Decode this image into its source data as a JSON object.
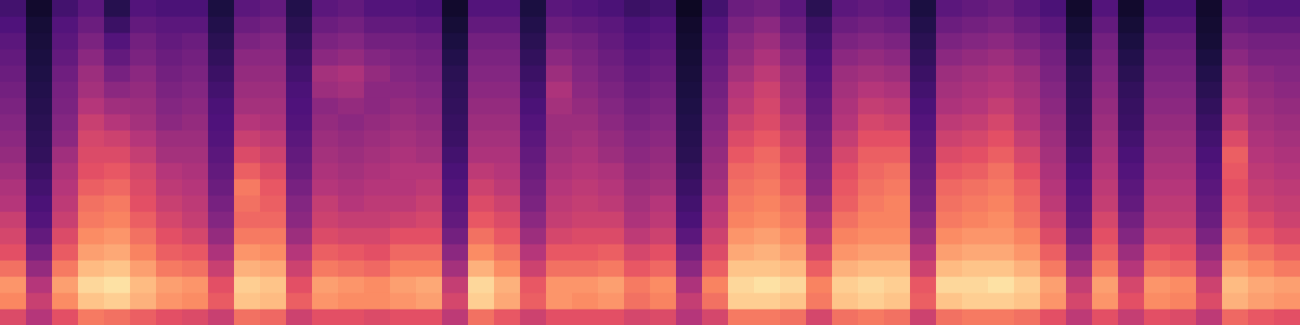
{
  "chart_data": {
    "type": "heatmap",
    "xlim": [
      0,
      50
    ],
    "ylim": [
      0,
      20
    ],
    "zlim": [
      0,
      100
    ],
    "tick_labels": false,
    "cells": [
      [
        60,
        75,
        78,
        70,
        62,
        58,
        55,
        50,
        48,
        45,
        42,
        40,
        38,
        36,
        34,
        32,
        30,
        28,
        25,
        22
      ],
      [
        50,
        55,
        50,
        42,
        35,
        30,
        26,
        24,
        22,
        20,
        18,
        17,
        16,
        15,
        14,
        13,
        12,
        11,
        10,
        8
      ],
      [
        62,
        76,
        80,
        72,
        65,
        60,
        55,
        52,
        50,
        48,
        45,
        40,
        38,
        36,
        35,
        33,
        30,
        28,
        26,
        22
      ],
      [
        72,
        88,
        92,
        86,
        80,
        76,
        72,
        70,
        66,
        62,
        60,
        58,
        55,
        50,
        46,
        44,
        40,
        36,
        32,
        28
      ],
      [
        70,
        90,
        94,
        88,
        82,
        78,
        74,
        72,
        68,
        64,
        60,
        56,
        50,
        45,
        40,
        35,
        30,
        26,
        20,
        15
      ],
      [
        66,
        84,
        86,
        80,
        74,
        70,
        66,
        62,
        60,
        58,
        54,
        50,
        46,
        44,
        42,
        40,
        36,
        34,
        30,
        26
      ],
      [
        62,
        78,
        80,
        72,
        66,
        62,
        58,
        55,
        52,
        50,
        46,
        44,
        40,
        38,
        36,
        34,
        32,
        30,
        28,
        24
      ],
      [
        60,
        76,
        78,
        70,
        64,
        58,
        54,
        52,
        50,
        48,
        46,
        44,
        42,
        40,
        38,
        36,
        34,
        32,
        28,
        24
      ],
      [
        55,
        65,
        62,
        55,
        48,
        42,
        38,
        35,
        32,
        30,
        28,
        26,
        25,
        24,
        22,
        20,
        18,
        16,
        14,
        12
      ],
      [
        70,
        88,
        90,
        84,
        78,
        72,
        68,
        70,
        72,
        66,
        60,
        55,
        50,
        46,
        44,
        42,
        40,
        36,
        32,
        28
      ],
      [
        68,
        86,
        88,
        82,
        76,
        72,
        68,
        66,
        64,
        60,
        56,
        52,
        48,
        46,
        44,
        42,
        40,
        38,
        34,
        30
      ],
      [
        56,
        66,
        62,
        56,
        50,
        44,
        40,
        38,
        35,
        32,
        30,
        28,
        26,
        25,
        24,
        22,
        20,
        18,
        16,
        14
      ],
      [
        62,
        78,
        80,
        72,
        66,
        60,
        56,
        54,
        50,
        48,
        46,
        44,
        42,
        40,
        44,
        46,
        40,
        36,
        32,
        28
      ],
      [
        62,
        76,
        78,
        70,
        64,
        58,
        54,
        50,
        48,
        46,
        44,
        42,
        40,
        42,
        46,
        48,
        42,
        38,
        34,
        30
      ],
      [
        60,
        76,
        76,
        68,
        62,
        58,
        54,
        52,
        50,
        48,
        46,
        44,
        42,
        40,
        40,
        42,
        38,
        34,
        30,
        26
      ],
      [
        62,
        78,
        80,
        74,
        68,
        62,
        56,
        52,
        50,
        50,
        48,
        46,
        44,
        42,
        40,
        38,
        36,
        34,
        30,
        26
      ],
      [
        62,
        80,
        82,
        74,
        68,
        62,
        58,
        55,
        52,
        50,
        46,
        44,
        42,
        40,
        38,
        36,
        34,
        32,
        28,
        24
      ],
      [
        52,
        58,
        54,
        46,
        40,
        34,
        30,
        28,
        26,
        24,
        22,
        20,
        19,
        18,
        17,
        16,
        14,
        12,
        10,
        8
      ],
      [
        70,
        90,
        92,
        84,
        76,
        70,
        64,
        60,
        56,
        52,
        48,
        46,
        44,
        42,
        40,
        38,
        36,
        34,
        30,
        26
      ],
      [
        64,
        82,
        84,
        76,
        70,
        64,
        60,
        56,
        52,
        50,
        48,
        46,
        44,
        42,
        40,
        38,
        36,
        34,
        30,
        26
      ],
      [
        56,
        66,
        64,
        56,
        50,
        44,
        40,
        36,
        34,
        32,
        30,
        28,
        26,
        24,
        22,
        20,
        18,
        16,
        14,
        12
      ],
      [
        62,
        78,
        78,
        70,
        64,
        58,
        54,
        52,
        50,
        48,
        46,
        44,
        44,
        46,
        48,
        44,
        40,
        36,
        32,
        28
      ],
      [
        62,
        76,
        78,
        70,
        64,
        60,
        56,
        54,
        52,
        50,
        48,
        46,
        44,
        42,
        40,
        38,
        36,
        34,
        30,
        26
      ],
      [
        62,
        78,
        80,
        72,
        66,
        60,
        56,
        52,
        50,
        48,
        44,
        42,
        40,
        38,
        36,
        34,
        32,
        30,
        28,
        24
      ],
      [
        58,
        70,
        72,
        64,
        58,
        52,
        48,
        46,
        44,
        42,
        40,
        38,
        36,
        34,
        32,
        30,
        28,
        26,
        24,
        20
      ],
      [
        60,
        74,
        76,
        68,
        62,
        56,
        52,
        50,
        46,
        44,
        42,
        40,
        38,
        36,
        34,
        32,
        30,
        28,
        26,
        22
      ],
      [
        50,
        54,
        48,
        40,
        34,
        28,
        24,
        22,
        20,
        18,
        16,
        15,
        14,
        13,
        12,
        11,
        10,
        9,
        8,
        6
      ],
      [
        58,
        70,
        74,
        66,
        60,
        56,
        52,
        50,
        46,
        44,
        42,
        40,
        38,
        36,
        34,
        32,
        30,
        28,
        26,
        22
      ],
      [
        72,
        90,
        92,
        88,
        82,
        78,
        74,
        72,
        70,
        68,
        64,
        60,
        56,
        52,
        50,
        46,
        42,
        40,
        36,
        32
      ],
      [
        72,
        90,
        94,
        88,
        84,
        80,
        76,
        74,
        72,
        70,
        68,
        64,
        60,
        58,
        56,
        52,
        48,
        44,
        40,
        34
      ],
      [
        70,
        88,
        92,
        86,
        80,
        76,
        72,
        70,
        66,
        64,
        60,
        56,
        52,
        48,
        46,
        44,
        40,
        36,
        32,
        28
      ],
      [
        58,
        72,
        74,
        66,
        58,
        52,
        48,
        44,
        40,
        38,
        36,
        34,
        32,
        30,
        28,
        26,
        24,
        22,
        20,
        16
      ],
      [
        70,
        88,
        90,
        84,
        78,
        74,
        70,
        66,
        64,
        62,
        58,
        54,
        50,
        48,
        46,
        44,
        40,
        36,
        32,
        28
      ],
      [
        72,
        90,
        92,
        86,
        80,
        76,
        74,
        72,
        70,
        68,
        66,
        62,
        58,
        54,
        50,
        46,
        42,
        38,
        34,
        30
      ],
      [
        70,
        88,
        90,
        86,
        80,
        76,
        74,
        74,
        72,
        70,
        66,
        62,
        56,
        52,
        48,
        44,
        40,
        36,
        32,
        28
      ],
      [
        56,
        66,
        64,
        56,
        50,
        44,
        40,
        36,
        34,
        32,
        30,
        28,
        26,
        24,
        22,
        20,
        18,
        16,
        14,
        12
      ],
      [
        70,
        88,
        92,
        86,
        80,
        76,
        72,
        70,
        68,
        64,
        60,
        56,
        52,
        48,
        46,
        44,
        40,
        36,
        32,
        28
      ],
      [
        72,
        90,
        92,
        88,
        82,
        78,
        74,
        72,
        70,
        66,
        62,
        58,
        54,
        50,
        48,
        46,
        42,
        38,
        34,
        30
      ],
      [
        72,
        90,
        94,
        88,
        82,
        78,
        76,
        74,
        72,
        70,
        66,
        62,
        58,
        54,
        50,
        48,
        44,
        40,
        36,
        32
      ],
      [
        70,
        88,
        90,
        84,
        78,
        74,
        70,
        68,
        66,
        62,
        58,
        54,
        50,
        48,
        46,
        44,
        40,
        36,
        32,
        28
      ],
      [
        62,
        78,
        80,
        72,
        66,
        60,
        56,
        52,
        50,
        48,
        46,
        44,
        42,
        40,
        38,
        36,
        34,
        32,
        28,
        24
      ],
      [
        52,
        58,
        54,
        46,
        40,
        34,
        30,
        28,
        26,
        24,
        22,
        20,
        19,
        18,
        17,
        16,
        14,
        12,
        10,
        8
      ],
      [
        62,
        78,
        80,
        72,
        66,
        62,
        58,
        54,
        52,
        50,
        48,
        46,
        44,
        42,
        40,
        38,
        36,
        34,
        30,
        26
      ],
      [
        54,
        62,
        58,
        50,
        44,
        38,
        34,
        30,
        28,
        26,
        24,
        22,
        20,
        19,
        18,
        16,
        14,
        12,
        10,
        8
      ],
      [
        62,
        76,
        78,
        70,
        64,
        58,
        54,
        52,
        50,
        48,
        46,
        44,
        42,
        40,
        38,
        36,
        34,
        32,
        28,
        24
      ],
      [
        60,
        74,
        76,
        68,
        62,
        58,
        54,
        52,
        50,
        48,
        46,
        44,
        42,
        40,
        38,
        36,
        34,
        32,
        28,
        24
      ],
      [
        52,
        60,
        56,
        48,
        42,
        36,
        32,
        30,
        28,
        26,
        24,
        22,
        20,
        18,
        16,
        14,
        12,
        10,
        9,
        8
      ],
      [
        68,
        84,
        86,
        80,
        74,
        70,
        66,
        64,
        62,
        64,
        66,
        60,
        54,
        50,
        46,
        44,
        40,
        36,
        32,
        28
      ],
      [
        64,
        80,
        82,
        76,
        70,
        64,
        60,
        56,
        54,
        52,
        50,
        48,
        46,
        44,
        42,
        40,
        36,
        34,
        30,
        26
      ],
      [
        62,
        78,
        80,
        72,
        66,
        60,
        56,
        54,
        52,
        50,
        48,
        46,
        44,
        42,
        40,
        38,
        36,
        34,
        30,
        26
      ]
    ]
  }
}
